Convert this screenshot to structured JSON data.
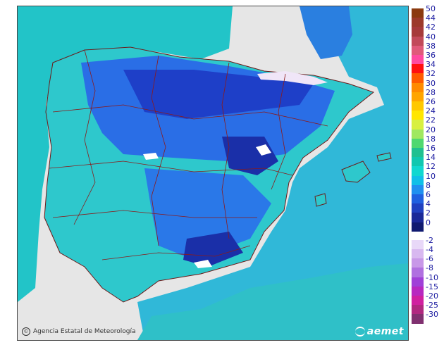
{
  "credit": {
    "text": "Agencia Estatal de Meteorología",
    "icon": "copyright-icon"
  },
  "logo": {
    "text": "aemet",
    "icon": "aemet-swirl-icon"
  },
  "legend": {
    "positive": [
      {
        "label": "50",
        "color": "#8b3a0f"
      },
      {
        "label": "44",
        "color": "#9c3a2a"
      },
      {
        "label": "42",
        "color": "#a63a3a"
      },
      {
        "label": "40",
        "color": "#c24a5a"
      },
      {
        "label": "38",
        "color": "#e05a7a"
      },
      {
        "label": "36",
        "color": "#ff4aa0"
      },
      {
        "label": "34",
        "color": "#ff1010"
      },
      {
        "label": "32",
        "color": "#ff5a00"
      },
      {
        "label": "30",
        "color": "#ff8a00"
      },
      {
        "label": "28",
        "color": "#ffa500"
      },
      {
        "label": "26",
        "color": "#ffc800"
      },
      {
        "label": "24",
        "color": "#ffe600"
      },
      {
        "label": "22",
        "color": "#d8f040"
      },
      {
        "label": "20",
        "color": "#a0e860"
      },
      {
        "label": "18",
        "color": "#50d870"
      },
      {
        "label": "16",
        "color": "#20c090"
      },
      {
        "label": "14",
        "color": "#10c8b0"
      },
      {
        "label": "12",
        "color": "#10d8d0"
      },
      {
        "label": "10",
        "color": "#10c0e8"
      },
      {
        "label": "8",
        "color": "#2090f0"
      },
      {
        "label": "6",
        "color": "#2060e0"
      },
      {
        "label": "4",
        "color": "#2040c0"
      },
      {
        "label": "2",
        "color": "#1a2898"
      },
      {
        "label": "0",
        "color": "#101a70"
      }
    ],
    "negative": [
      {
        "label": "-2",
        "color": "#e8d8f8"
      },
      {
        "label": "-4",
        "color": "#d8b8f0"
      },
      {
        "label": "-6",
        "color": "#c898e8"
      },
      {
        "label": "-8",
        "color": "#b070e0"
      },
      {
        "label": "-10",
        "color": "#a040d8"
      },
      {
        "label": "-15",
        "color": "#b828c0"
      },
      {
        "label": "-20",
        "color": "#d020a0"
      },
      {
        "label": "-25",
        "color": "#b02880"
      },
      {
        "label": "-30",
        "color": "#803070"
      }
    ]
  },
  "colors": {
    "sea_light": "#20d0c0",
    "sea_deep": "#2a8fd8",
    "land_coast": "#30c8d0",
    "land_cold": "#1f4ad8",
    "land_mid": "#2a78e8",
    "background_land": "#e6e6e6",
    "border": "#8b1a1a"
  }
}
